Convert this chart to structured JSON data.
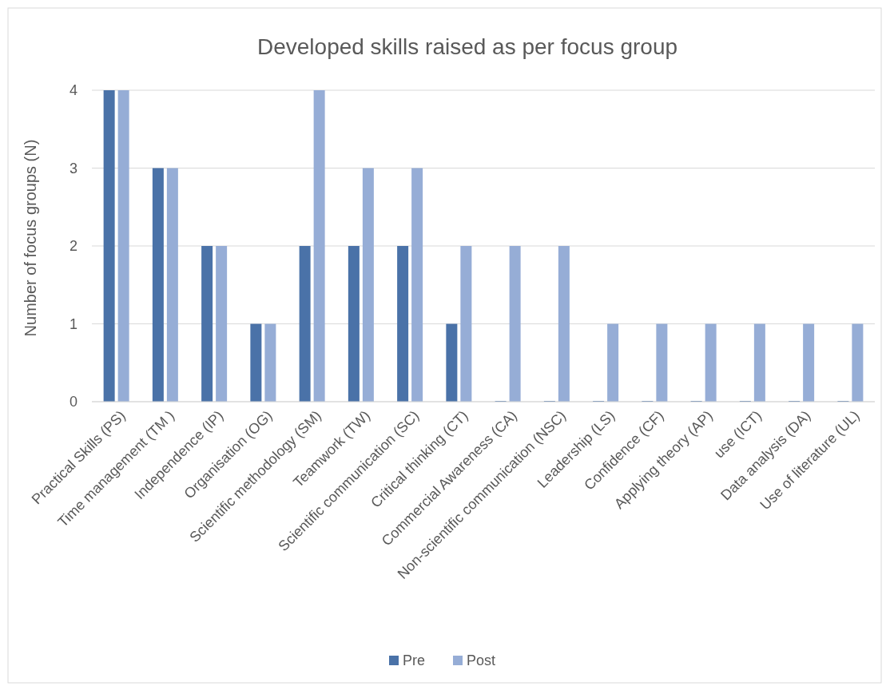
{
  "chart_data": {
    "type": "bar",
    "title": "Developed skills raised as per focus group",
    "ylabel": "Number of focus groups (N)",
    "categories": [
      "Practical Skills (PS)",
      "Time management (TM )",
      "Independence (IP)",
      "Organisation (OG)",
      "Scientific methodology (SM)",
      "Teamwork (TW)",
      "Scientific communication (SC)",
      "Critical thinking (CT)",
      "Commercial Awareness (CA)",
      "Non-scientific communication (NSC)",
      "Leadership (LS)",
      "Confidence (CF)",
      "Applying theory (AP)",
      "use (ICT)",
      "Data analysis (DA)",
      "Use of literature (UL)"
    ],
    "series": [
      {
        "name": "Pre",
        "color": "#4a72a8",
        "values": [
          4,
          3,
          2,
          1,
          2,
          2,
          2,
          1,
          0,
          0,
          0,
          0,
          0,
          0,
          0,
          0
        ]
      },
      {
        "name": "Post",
        "color": "#96add6",
        "values": [
          4,
          3,
          2,
          1,
          4,
          3,
          3,
          2,
          2,
          2,
          1,
          1,
          1,
          1,
          1,
          1
        ]
      }
    ],
    "ylim": [
      0,
      4
    ],
    "yticks": [
      0,
      1,
      2,
      3,
      4
    ],
    "grid": "y",
    "legend": "bottom"
  }
}
